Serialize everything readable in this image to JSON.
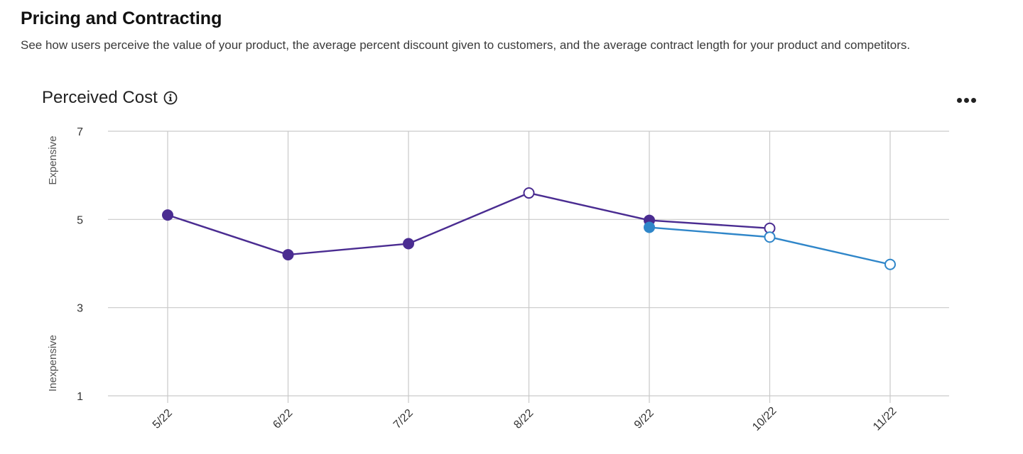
{
  "header": {
    "title": "Pricing and Contracting",
    "description": "See how users perceive the value of your product, the average percent discount given to customers, and the average contract length for your product and competitors."
  },
  "card": {
    "title": "Perceived Cost",
    "info_icon": "info-icon",
    "menu_icon": "more-horizontal-icon"
  },
  "chart_data": {
    "type": "line",
    "title": "Perceived Cost",
    "categories": [
      "5/22",
      "6/22",
      "7/22",
      "8/22",
      "9/22",
      "10/22",
      "11/22"
    ],
    "ylim": [
      1,
      7
    ],
    "yticks": [
      1,
      3,
      5,
      7
    ],
    "y_annotations": {
      "high": "Expensive",
      "low": "Inexpensive"
    },
    "grid": true,
    "series": [
      {
        "color": "#4a2c91",
        "values": [
          5.1,
          4.2,
          4.45,
          5.6,
          4.98,
          4.8,
          null
        ],
        "hollow": [
          false,
          false,
          false,
          true,
          false,
          true,
          false
        ]
      },
      {
        "color": "#2f86c9",
        "values": [
          null,
          null,
          null,
          null,
          4.82,
          4.6,
          3.98
        ],
        "hollow": [
          false,
          false,
          false,
          false,
          false,
          true,
          true
        ]
      }
    ]
  }
}
